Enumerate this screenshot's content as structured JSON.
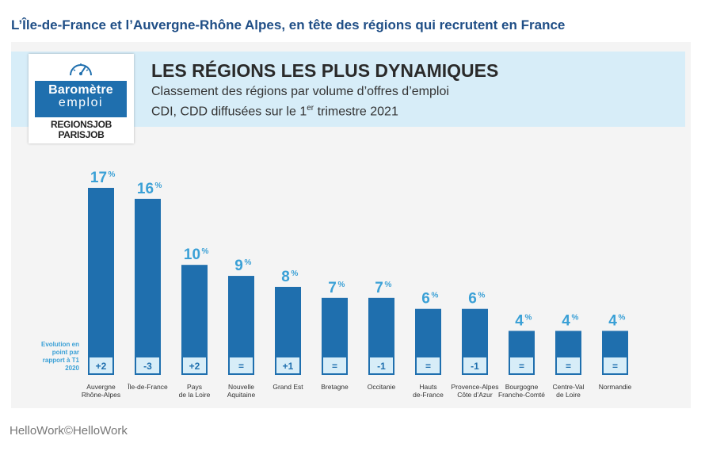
{
  "headline": "L’Île-de-France et l’Auvergne-Rhône Alpes, en tête des régions qui recrutent en France",
  "logo": {
    "line1": "Baromètre",
    "line2": "emploi",
    "brand1": "REGIONSJOB",
    "brand2": "PARISJOB",
    "icon": "gauge-icon"
  },
  "title": "LES RÉGIONS LES PLUS DYNAMIQUES",
  "subtitle_line1": "Classement des régions par volume d’offres d’emploi",
  "subtitle_line2_a": "CDI, CDD diffusées sur le 1",
  "subtitle_line2_sup": "er",
  "subtitle_line2_b": " trimestre 2021",
  "legend_label": "Evolution en point par rapport à T1 2020",
  "credit": "HelloWork©HelloWork",
  "colors": {
    "bar": "#1f6fae",
    "bar_label": "#3aa0d6",
    "evolution_box": "#d7edf8",
    "headline": "#1f4e86"
  },
  "chart_data": {
    "type": "bar",
    "title": "LES RÉGIONS LES PLUS DYNAMIQUES",
    "unit": "%",
    "categories": [
      [
        "Auvergne",
        "Rhône-Alpes"
      ],
      [
        "Île-de-France"
      ],
      [
        "Pays",
        "de la Loire"
      ],
      [
        "Nouvelle",
        "Aquitaine"
      ],
      [
        "Grand Est"
      ],
      [
        "Bretagne"
      ],
      [
        "Occitanie"
      ],
      [
        "Hauts",
        "de-France"
      ],
      [
        "Provence-Alpes",
        "Côte d’Azur"
      ],
      [
        "Bourgogne",
        "Franche-Comté"
      ],
      [
        "Centre-Val",
        "de Loire"
      ],
      [
        "Normandie"
      ]
    ],
    "values": [
      17,
      16,
      10,
      9,
      8,
      7,
      7,
      6,
      6,
      4,
      4,
      4
    ],
    "evolution": [
      "+2",
      "-3",
      "+2",
      "=",
      "+1",
      "=",
      "-1",
      "=",
      "-1",
      "=",
      "=",
      "="
    ],
    "ylim": [
      0,
      17
    ]
  }
}
